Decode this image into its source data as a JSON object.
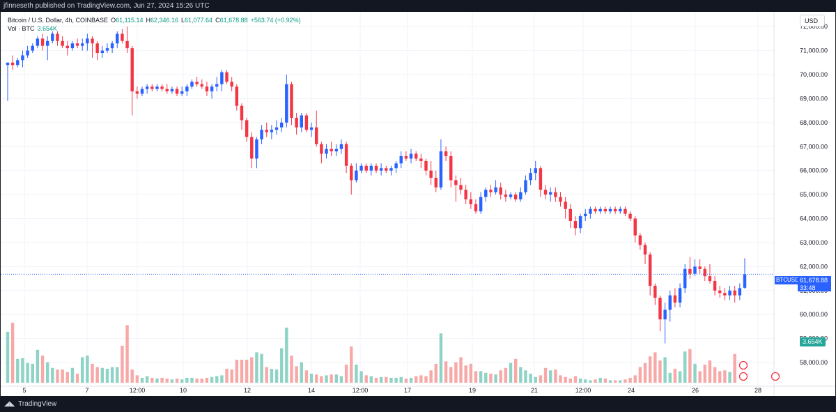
{
  "header": {
    "published": "jfinneseth published on TradingView.com, Jun 27, 2024 15:26 UTC"
  },
  "legend": {
    "title": "Bitcoin / U.S. Dollar, 4h, COINBASE",
    "o_label": "O",
    "o": "61,115.14",
    "h_label": "H",
    "h": "62,346.16",
    "l_label": "L",
    "l": "61,077.64",
    "c_label": "C",
    "c": "61,678.88",
    "change": "+563.74 (+0.92%)",
    "vol_label": "Vol · BTC",
    "vol": "3.654K"
  },
  "currency": "USD",
  "price_tag": {
    "symbol": "BTCUSD",
    "value": "61,678.88",
    "countdown": "33:48"
  },
  "volume_tag": "3.654K",
  "footer": {
    "brand": "TradingView"
  },
  "colors": {
    "up": "#2962ff",
    "down": "#f23645",
    "vol_up": "#8fd3c6",
    "vol_down": "#f7a9a8",
    "grid": "#f0f3fa"
  },
  "chart_data": {
    "type": "candlestick",
    "title": "Bitcoin / U.S. Dollar, 4h, COINBASE",
    "ylim": [
      57000,
      72600
    ],
    "y_ticks": [
      "72,000.00",
      "71,000.00",
      "70,000.00",
      "69,000.00",
      "68,000.00",
      "67,000.00",
      "66,000.00",
      "65,000.00",
      "64,000.00",
      "63,000.00",
      "62,000.00",
      "61,000.00",
      "60,000.00",
      "59,000.00",
      "58,000.00"
    ],
    "x_ticks": [
      "5",
      "7",
      "12:00",
      "10",
      "12",
      "14",
      "12:00",
      "17",
      "19",
      "21",
      "12:00",
      "24",
      "26",
      "28"
    ],
    "grid": true,
    "candles": [
      [
        70400,
        70500,
        68900,
        70500
      ],
      [
        70500,
        70800,
        70200,
        70400
      ],
      [
        70400,
        70700,
        70300,
        70600
      ],
      [
        70600,
        71000,
        70300,
        70800
      ],
      [
        70800,
        71200,
        70700,
        71000
      ],
      [
        71000,
        71300,
        70900,
        71200
      ],
      [
        71200,
        71600,
        71100,
        71500
      ],
      [
        71500,
        71700,
        71000,
        71200
      ],
      [
        71200,
        71600,
        70600,
        71400
      ],
      [
        71400,
        71800,
        71300,
        71700
      ],
      [
        71700,
        71800,
        71200,
        71400
      ],
      [
        71400,
        71600,
        71100,
        71200
      ],
      [
        71200,
        71400,
        70800,
        71100
      ],
      [
        71100,
        71400,
        71000,
        71300
      ],
      [
        71300,
        71500,
        71100,
        71200
      ],
      [
        71200,
        71500,
        71000,
        71300
      ],
      [
        71300,
        71700,
        71000,
        71500
      ],
      [
        71500,
        71600,
        70700,
        71300
      ],
      [
        71300,
        71400,
        70600,
        70900
      ],
      [
        70900,
        71200,
        70700,
        71000
      ],
      [
        71000,
        71300,
        70900,
        71100
      ],
      [
        71100,
        71400,
        70900,
        71300
      ],
      [
        71300,
        71800,
        71100,
        71700
      ],
      [
        71700,
        71900,
        71300,
        71400
      ],
      [
        71400,
        72000,
        70900,
        71100
      ],
      [
        71100,
        71200,
        68300,
        69300
      ],
      [
        69300,
        69500,
        69000,
        69200
      ],
      [
        69200,
        69500,
        69100,
        69400
      ],
      [
        69400,
        69600,
        69200,
        69500
      ],
      [
        69500,
        69600,
        69300,
        69400
      ],
      [
        69400,
        69600,
        69300,
        69500
      ],
      [
        69500,
        69600,
        69300,
        69400
      ],
      [
        69400,
        69600,
        69200,
        69300
      ],
      [
        69300,
        69500,
        69200,
        69400
      ],
      [
        69400,
        69500,
        69100,
        69200
      ],
      [
        69200,
        69500,
        69100,
        69300
      ],
      [
        69300,
        69600,
        69100,
        69500
      ],
      [
        69500,
        69800,
        69400,
        69700
      ],
      [
        69700,
        69900,
        69500,
        69600
      ],
      [
        69600,
        69800,
        69400,
        69500
      ],
      [
        69500,
        69700,
        69100,
        69300
      ],
      [
        69300,
        69600,
        69000,
        69500
      ],
      [
        69500,
        69900,
        69300,
        69600
      ],
      [
        69600,
        70200,
        69300,
        70100
      ],
      [
        70100,
        70200,
        69600,
        69700
      ],
      [
        69700,
        69900,
        69300,
        69500
      ],
      [
        69500,
        69600,
        68500,
        68700
      ],
      [
        68700,
        68800,
        67700,
        68100
      ],
      [
        68100,
        68200,
        67200,
        67400
      ],
      [
        67400,
        67600,
        66100,
        66500
      ],
      [
        66500,
        67400,
        66100,
        67300
      ],
      [
        67300,
        67900,
        67100,
        67700
      ],
      [
        67700,
        68000,
        67400,
        67600
      ],
      [
        67600,
        67900,
        67300,
        67700
      ],
      [
        67700,
        68100,
        67500,
        67800
      ],
      [
        67800,
        68200,
        67600,
        68000
      ],
      [
        68000,
        70000,
        67800,
        69600
      ],
      [
        69600,
        69700,
        67900,
        68200
      ],
      [
        68200,
        68400,
        67500,
        67800
      ],
      [
        67800,
        68400,
        67600,
        68300
      ],
      [
        68300,
        68400,
        67600,
        67700
      ],
      [
        67700,
        68000,
        67400,
        67800
      ],
      [
        67800,
        68500,
        67000,
        67100
      ],
      [
        67100,
        67200,
        66300,
        66700
      ],
      [
        66700,
        67100,
        66500,
        66900
      ],
      [
        66900,
        67200,
        66600,
        66800
      ],
      [
        66800,
        67100,
        66600,
        66900
      ],
      [
        66900,
        67300,
        66700,
        67100
      ],
      [
        67100,
        67200,
        65900,
        66200
      ],
      [
        66200,
        66300,
        65000,
        65600
      ],
      [
        65600,
        66300,
        65500,
        66000
      ],
      [
        66000,
        66300,
        65900,
        66200
      ],
      [
        66200,
        66300,
        65900,
        66000
      ],
      [
        66000,
        66300,
        65800,
        66200
      ],
      [
        66200,
        66300,
        65900,
        66000
      ],
      [
        66000,
        66300,
        65800,
        66100
      ],
      [
        66100,
        66200,
        65900,
        66000
      ],
      [
        66000,
        66200,
        65800,
        66100
      ],
      [
        66100,
        66400,
        65900,
        66300
      ],
      [
        66300,
        66800,
        66100,
        66600
      ],
      [
        66600,
        66800,
        66400,
        66500
      ],
      [
        66500,
        66900,
        66300,
        66700
      ],
      [
        66700,
        66800,
        66400,
        66500
      ],
      [
        66500,
        66700,
        66100,
        66400
      ],
      [
        66400,
        66500,
        65800,
        66000
      ],
      [
        66000,
        66400,
        65400,
        65700
      ],
      [
        65700,
        66000,
        65100,
        65300
      ],
      [
        65300,
        67300,
        65200,
        66800
      ],
      [
        66800,
        67000,
        66400,
        66600
      ],
      [
        66600,
        66800,
        65300,
        65600
      ],
      [
        65600,
        65800,
        64700,
        65400
      ],
      [
        65400,
        65700,
        65000,
        65200
      ],
      [
        65200,
        65400,
        64600,
        64800
      ],
      [
        64800,
        65100,
        64400,
        64600
      ],
      [
        64600,
        64800,
        64200,
        64300
      ],
      [
        64300,
        65100,
        64200,
        64900
      ],
      [
        64900,
        65300,
        64700,
        65200
      ],
      [
        65200,
        65400,
        64900,
        65100
      ],
      [
        65100,
        65600,
        65000,
        65300
      ],
      [
        65300,
        65500,
        64800,
        65000
      ],
      [
        65000,
        65200,
        64700,
        64900
      ],
      [
        64900,
        65100,
        64800,
        65000
      ],
      [
        65000,
        65100,
        64700,
        64800
      ],
      [
        64800,
        65300,
        64700,
        65100
      ],
      [
        65100,
        65800,
        65000,
        65600
      ],
      [
        65600,
        66100,
        65400,
        65900
      ],
      [
        65900,
        66400,
        65600,
        66100
      ],
      [
        66100,
        66200,
        64900,
        65200
      ],
      [
        65200,
        65400,
        64800,
        65000
      ],
      [
        65000,
        65300,
        64700,
        65100
      ],
      [
        65100,
        65300,
        64700,
        64900
      ],
      [
        64900,
        65100,
        64500,
        64700
      ],
      [
        64700,
        64900,
        64000,
        64400
      ],
      [
        64400,
        64600,
        63600,
        63900
      ],
      [
        63900,
        64100,
        63300,
        63600
      ],
      [
        63600,
        64200,
        63400,
        64100
      ],
      [
        64100,
        64400,
        63900,
        64200
      ],
      [
        64200,
        64500,
        64000,
        64400
      ],
      [
        64400,
        64500,
        64200,
        64300
      ],
      [
        64300,
        64500,
        64200,
        64400
      ],
      [
        64400,
        64500,
        64200,
        64300
      ],
      [
        64300,
        64500,
        64200,
        64400
      ],
      [
        64400,
        64500,
        64200,
        64300
      ],
      [
        64300,
        64500,
        64200,
        64400
      ],
      [
        64400,
        64500,
        64100,
        64200
      ],
      [
        64200,
        64300,
        63900,
        64000
      ],
      [
        64000,
        64100,
        63000,
        63300
      ],
      [
        63300,
        63400,
        62700,
        62900
      ],
      [
        62900,
        63000,
        62100,
        62500
      ],
      [
        62500,
        62600,
        60800,
        61200
      ],
      [
        61200,
        61300,
        60400,
        60700
      ],
      [
        60700,
        60800,
        59300,
        59800
      ],
      [
        59800,
        60500,
        58800,
        60200
      ],
      [
        60200,
        61000,
        59700,
        60800
      ],
      [
        60800,
        61100,
        60300,
        60500
      ],
      [
        60500,
        61300,
        60300,
        61100
      ],
      [
        61100,
        62100,
        60900,
        61900
      ],
      [
        61900,
        62400,
        61500,
        61700
      ],
      [
        61700,
        62300,
        61600,
        62000
      ],
      [
        62000,
        62300,
        61700,
        61900
      ],
      [
        61900,
        62000,
        61400,
        61600
      ],
      [
        61600,
        62100,
        61300,
        61400
      ],
      [
        61400,
        61600,
        60800,
        61000
      ],
      [
        61000,
        61200,
        60700,
        60900
      ],
      [
        60900,
        61100,
        60600,
        60800
      ],
      [
        60800,
        61200,
        60600,
        61000
      ],
      [
        61000,
        61200,
        60500,
        60800
      ],
      [
        60800,
        61300,
        60600,
        61100
      ],
      [
        61115,
        62346,
        61078,
        61679
      ]
    ],
    "volume": [
      0.62,
      0.73,
      0.29,
      0.3,
      0.24,
      0.23,
      0.4,
      0.33,
      0.25,
      0.18,
      0.16,
      0.16,
      0.13,
      0.18,
      0.11,
      0.31,
      0.33,
      0.23,
      0.19,
      0.18,
      0.17,
      0.19,
      0.19,
      0.45,
      0.7,
      0.16,
      0.09,
      0.06,
      0.08,
      0.06,
      0.05,
      0.06,
      0.05,
      0.04,
      0.05,
      0.04,
      0.06,
      0.06,
      0.05,
      0.05,
      0.06,
      0.07,
      0.08,
      0.09,
      0.17,
      0.16,
      0.28,
      0.28,
      0.28,
      0.31,
      0.37,
      0.35,
      0.19,
      0.17,
      0.16,
      0.42,
      0.67,
      0.33,
      0.2,
      0.25,
      0.15,
      0.11,
      0.1,
      0.08,
      0.09,
      0.1,
      0.1,
      0.08,
      0.22,
      0.44,
      0.22,
      0.14,
      0.09,
      0.08,
      0.06,
      0.07,
      0.07,
      0.06,
      0.06,
      0.07,
      0.05,
      0.06,
      0.08,
      0.09,
      0.08,
      0.15,
      0.23,
      0.6,
      0.26,
      0.19,
      0.25,
      0.31,
      0.21,
      0.23,
      0.14,
      0.14,
      0.12,
      0.11,
      0.1,
      0.15,
      0.18,
      0.24,
      0.29,
      0.19,
      0.15,
      0.11,
      0.07,
      0.09,
      0.18,
      0.15,
      0.16,
      0.09,
      0.07,
      0.05,
      0.08,
      0.05,
      0.04,
      0.03,
      0.04,
      0.06,
      0.05,
      0.03,
      0.03,
      0.03,
      0.04,
      0.06,
      0.09,
      0.19,
      0.24,
      0.32,
      0.37,
      0.27,
      0.31,
      0.12,
      0.17,
      0.14,
      0.38,
      0.41,
      0.23,
      0.14,
      0.22,
      0.27,
      0.19,
      0.14,
      0.15,
      0.13,
      0.35
    ]
  }
}
